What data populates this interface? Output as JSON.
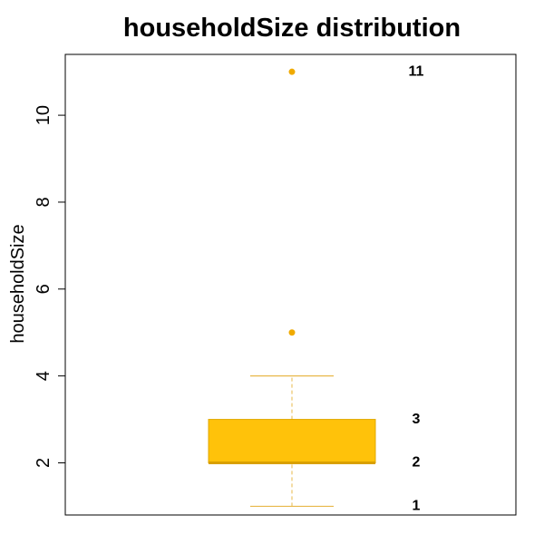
{
  "chart_data": {
    "type": "boxplot",
    "title": "householdSize distribution",
    "xlabel": "",
    "ylabel": "householdSize",
    "ylim": [
      0.8,
      11.4
    ],
    "yticks": [
      2,
      4,
      6,
      8,
      10
    ],
    "box": {
      "min": 1,
      "q1": 2,
      "median": 2,
      "q3": 3,
      "max": 4
    },
    "outliers": [
      5,
      11
    ],
    "value_labels": [
      "1",
      "2",
      "3",
      "11"
    ],
    "colors": {
      "box_fill": "#FFC20A",
      "box_border": "#E0A800",
      "whisker": "#E8B84A",
      "median": "#D9A000",
      "outlier": "#F0AA00",
      "frame": "#000000"
    }
  }
}
